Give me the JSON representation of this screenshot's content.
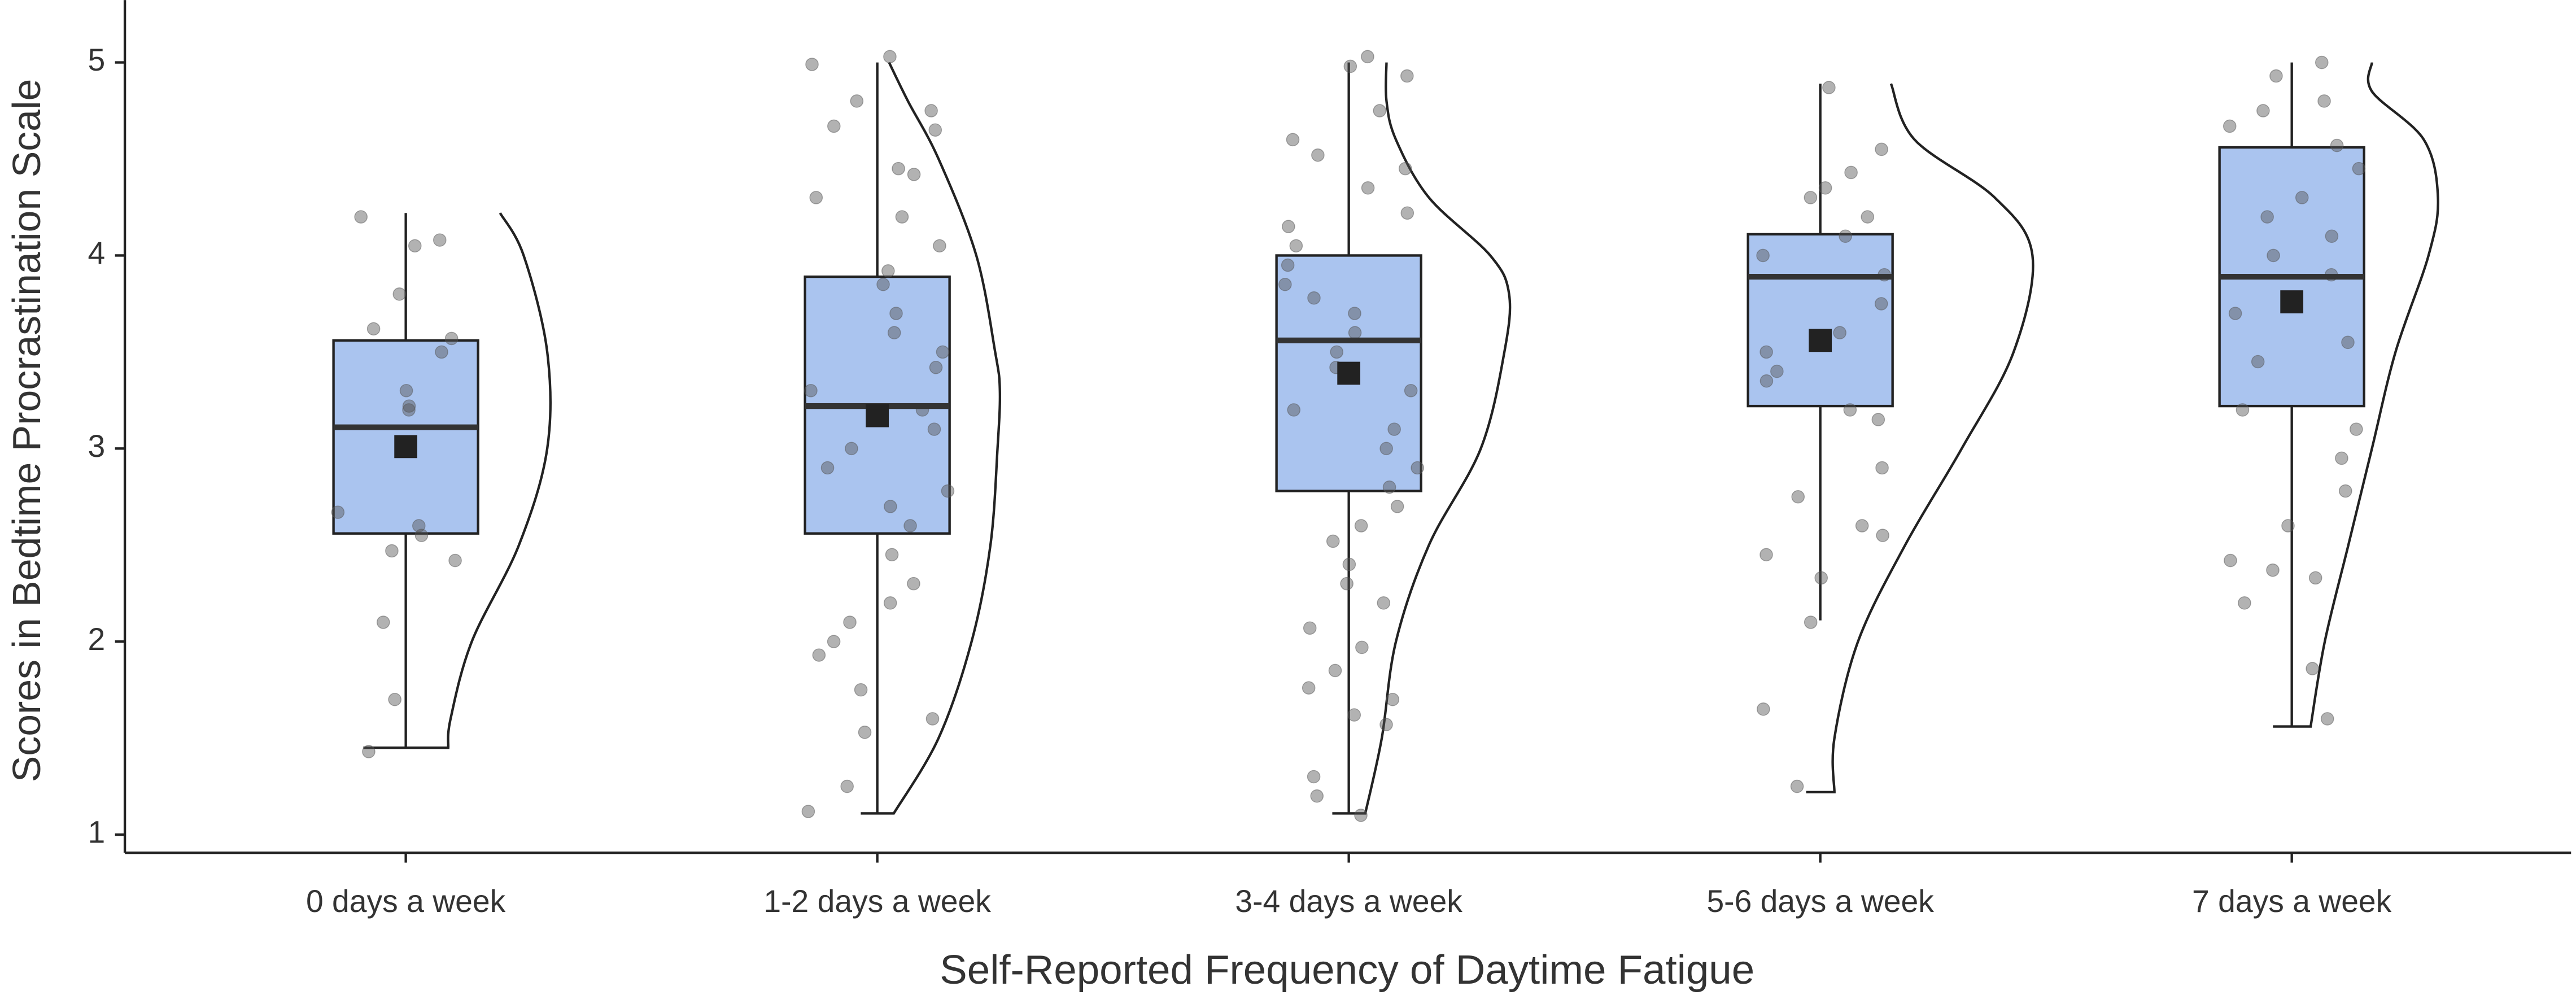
{
  "chart_data": {
    "type": "violin",
    "xlabel": "Self-Reported Frequency of Daytime Fatigue",
    "ylabel": "Scores in Bedtime Procrastination Scale",
    "categories": [
      "0 days a week",
      "1-2 days a week",
      "3-4 days a week",
      "5-6 days a week",
      "7 days a week"
    ],
    "ylim": [
      0.906,
      5.323
    ],
    "yticks": [
      1,
      2,
      3,
      4,
      5
    ],
    "grid": false,
    "box_color": "#aac4ef",
    "point_color": "#555555",
    "mean_color": "#222222",
    "boxes": [
      {
        "whisker_low": 1.45,
        "q1": 2.56,
        "median": 3.11,
        "q3": 3.56,
        "whisker_high": 4.22,
        "mean": 3.01
      },
      {
        "whisker_low": 1.11,
        "q1": 2.56,
        "median": 3.22,
        "q3": 3.89,
        "whisker_high": 5.0,
        "mean": 3.17
      },
      {
        "whisker_low": 1.11,
        "q1": 2.78,
        "median": 3.56,
        "q3": 4.0,
        "whisker_high": 5.0,
        "mean": 3.39
      },
      {
        "whisker_low": 2.11,
        "q1": 3.22,
        "median": 3.89,
        "q3": 4.11,
        "whisker_high": 4.89,
        "mean": 3.56
      },
      {
        "whisker_low": 1.56,
        "q1": 3.22,
        "median": 3.89,
        "q3": 4.56,
        "whisker_high": 5.0,
        "mean": 3.76
      }
    ],
    "violins": [
      {
        "y": [
          1.45,
          1.6,
          2.0,
          2.5,
          3.0,
          3.5,
          4.0,
          4.22
        ],
        "width": [
          0.09,
          0.095,
          0.14,
          0.24,
          0.3,
          0.3,
          0.25,
          0.2
        ]
      },
      {
        "y": [
          1.11,
          1.5,
          2.0,
          2.5,
          3.0,
          3.3,
          3.5,
          4.0,
          4.5,
          4.8,
          5.0
        ],
        "width": [
          0.035,
          0.13,
          0.2,
          0.24,
          0.255,
          0.26,
          0.25,
          0.21,
          0.13,
          0.065,
          0.025
        ]
      },
      {
        "y": [
          1.11,
          1.5,
          2.0,
          2.5,
          3.0,
          3.5,
          3.8,
          4.0,
          4.3,
          4.6,
          4.8,
          5.0
        ],
        "width": [
          0.035,
          0.07,
          0.1,
          0.17,
          0.28,
          0.33,
          0.34,
          0.3,
          0.17,
          0.1,
          0.08,
          0.08
        ]
      },
      {
        "y": [
          1.22,
          1.5,
          2.0,
          2.5,
          3.0,
          3.5,
          4.0,
          4.3,
          4.6,
          4.89
        ],
        "width": [
          0.03,
          0.03,
          0.08,
          0.18,
          0.3,
          0.41,
          0.45,
          0.37,
          0.2,
          0.15
        ]
      },
      {
        "y": [
          1.56,
          2.0,
          2.5,
          3.0,
          3.5,
          4.0,
          4.3,
          4.6,
          4.85,
          5.0
        ],
        "width": [
          0.04,
          0.07,
          0.12,
          0.17,
          0.22,
          0.29,
          0.31,
          0.28,
          0.17,
          0.17
        ]
      }
    ],
    "points": [
      [
        4.2,
        4.08,
        4.05,
        3.8,
        3.62,
        3.57,
        3.5,
        3.3,
        3.22,
        3.2,
        2.67,
        2.6,
        2.55,
        2.47,
        2.42,
        2.1,
        1.7,
        1.43
      ],
      [
        5.03,
        4.99,
        4.8,
        4.75,
        4.67,
        4.65,
        4.45,
        4.42,
        4.3,
        4.2,
        4.05,
        3.92,
        3.85,
        3.7,
        3.6,
        3.5,
        3.42,
        3.3,
        3.2,
        3.1,
        3.0,
        2.9,
        2.78,
        2.7,
        2.6,
        2.45,
        2.3,
        2.2,
        2.1,
        2.0,
        1.93,
        1.75,
        1.6,
        1.53,
        1.25,
        1.12
      ],
      [
        5.03,
        4.98,
        4.93,
        4.75,
        4.6,
        4.52,
        4.45,
        4.35,
        4.22,
        4.15,
        4.05,
        3.95,
        3.85,
        3.78,
        3.7,
        3.6,
        3.5,
        3.42,
        3.3,
        3.2,
        3.1,
        3.0,
        2.9,
        2.8,
        2.7,
        2.6,
        2.52,
        2.4,
        2.3,
        2.2,
        2.07,
        1.97,
        1.85,
        1.76,
        1.7,
        1.62,
        1.57,
        1.3,
        1.2,
        1.1
      ],
      [
        4.87,
        4.55,
        4.43,
        4.35,
        4.3,
        4.2,
        4.1,
        4.0,
        3.9,
        3.75,
        3.6,
        3.5,
        3.4,
        3.35,
        3.2,
        3.15,
        2.9,
        2.75,
        2.6,
        2.55,
        2.45,
        2.33,
        2.1,
        1.65,
        1.25
      ],
      [
        5.0,
        4.93,
        4.8,
        4.75,
        4.67,
        4.57,
        4.45,
        4.3,
        4.2,
        4.1,
        4.0,
        3.9,
        3.7,
        3.55,
        3.45,
        3.2,
        3.1,
        2.95,
        2.78,
        2.6,
        2.42,
        2.37,
        2.33,
        2.2,
        1.86,
        1.6
      ]
    ]
  }
}
